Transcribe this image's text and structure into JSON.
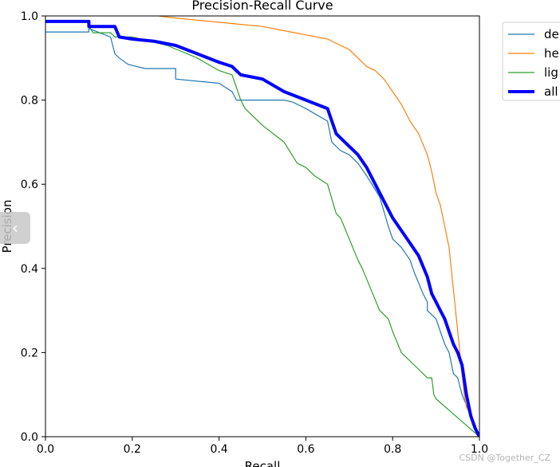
{
  "chart_data": {
    "type": "line",
    "title": "Precision-Recall Curve",
    "xlabel": "Recall",
    "ylabel": "Precision",
    "xlim": [
      0,
      1
    ],
    "ylim": [
      0,
      1
    ],
    "xticks": [
      "0.0",
      "0.2",
      "0.4",
      "0.6",
      "0.8",
      "1.0"
    ],
    "yticks": [
      "0.0",
      "0.2",
      "0.4",
      "0.6",
      "0.8",
      "1.0"
    ],
    "grid": false,
    "legend_position": "outside-top-right",
    "series": [
      {
        "name": "de",
        "color": "#1f77b4",
        "width": 1.2,
        "x": [
          0.0,
          0.1,
          0.1,
          0.15,
          0.16,
          0.17,
          0.19,
          0.21,
          0.23,
          0.3,
          0.3,
          0.4,
          0.43,
          0.44,
          0.46,
          0.5,
          0.55,
          0.57,
          0.6,
          0.65,
          0.66,
          0.68,
          0.7,
          0.72,
          0.74,
          0.77,
          0.79,
          0.8,
          0.82,
          0.84,
          0.85,
          0.87,
          0.88,
          0.88,
          0.9,
          0.91,
          0.92,
          0.93,
          0.94,
          0.95,
          0.96,
          1.0
        ],
        "y": [
          0.962,
          0.962,
          0.97,
          0.95,
          0.91,
          0.9,
          0.885,
          0.88,
          0.875,
          0.875,
          0.85,
          0.84,
          0.82,
          0.8,
          0.8,
          0.8,
          0.8,
          0.795,
          0.78,
          0.75,
          0.7,
          0.68,
          0.67,
          0.65,
          0.62,
          0.57,
          0.5,
          0.47,
          0.45,
          0.42,
          0.39,
          0.34,
          0.32,
          0.3,
          0.28,
          0.25,
          0.22,
          0.2,
          0.15,
          0.14,
          0.1,
          0.0
        ]
      },
      {
        "name": "he",
        "color": "#ff7f0e",
        "width": 1.2,
        "x": [
          0.26,
          0.3,
          0.35,
          0.4,
          0.45,
          0.5,
          0.55,
          0.6,
          0.65,
          0.68,
          0.7,
          0.72,
          0.74,
          0.76,
          0.78,
          0.8,
          0.82,
          0.84,
          0.86,
          0.88,
          0.89,
          0.9,
          0.91,
          0.92,
          0.93,
          0.935,
          0.94,
          0.945,
          0.95,
          0.955,
          0.96,
          0.965,
          0.97,
          0.98,
          0.99,
          1.0
        ],
        "y": [
          1.0,
          0.995,
          0.99,
          0.985,
          0.98,
          0.975,
          0.965,
          0.955,
          0.945,
          0.93,
          0.92,
          0.9,
          0.88,
          0.87,
          0.85,
          0.82,
          0.79,
          0.75,
          0.72,
          0.67,
          0.63,
          0.58,
          0.55,
          0.5,
          0.45,
          0.4,
          0.35,
          0.3,
          0.25,
          0.2,
          0.15,
          0.1,
          0.07,
          0.05,
          0.03,
          0.0
        ]
      },
      {
        "name": "lig",
        "color": "#2ca02c",
        "width": 1.2,
        "x": [
          0.1,
          0.11,
          0.15,
          0.16,
          0.2,
          0.28,
          0.35,
          0.4,
          0.43,
          0.44,
          0.45,
          0.46,
          0.5,
          0.55,
          0.58,
          0.6,
          0.62,
          0.65,
          0.67,
          0.68,
          0.7,
          0.72,
          0.73,
          0.75,
          0.77,
          0.79,
          0.8,
          0.82,
          0.84,
          0.86,
          0.88,
          0.89,
          0.895,
          0.9,
          1.0
        ],
        "y": [
          0.975,
          0.96,
          0.96,
          0.95,
          0.95,
          0.93,
          0.9,
          0.87,
          0.86,
          0.83,
          0.8,
          0.78,
          0.74,
          0.7,
          0.65,
          0.64,
          0.62,
          0.6,
          0.53,
          0.52,
          0.47,
          0.42,
          0.4,
          0.35,
          0.3,
          0.28,
          0.25,
          0.2,
          0.18,
          0.16,
          0.14,
          0.14,
          0.1,
          0.09,
          0.0
        ]
      },
      {
        "name": "all",
        "color": "#0000ff",
        "width": 4,
        "x": [
          0.0,
          0.1,
          0.1,
          0.16,
          0.17,
          0.2,
          0.25,
          0.3,
          0.35,
          0.4,
          0.43,
          0.45,
          0.5,
          0.55,
          0.6,
          0.65,
          0.66,
          0.67,
          0.69,
          0.72,
          0.74,
          0.76,
          0.78,
          0.8,
          0.82,
          0.84,
          0.86,
          0.88,
          0.89,
          0.9,
          0.91,
          0.92,
          0.93,
          0.94,
          0.95,
          0.96,
          0.97,
          0.98,
          0.99,
          1.0
        ],
        "y": [
          0.987,
          0.987,
          0.975,
          0.975,
          0.95,
          0.945,
          0.94,
          0.93,
          0.91,
          0.89,
          0.88,
          0.86,
          0.85,
          0.82,
          0.8,
          0.78,
          0.75,
          0.72,
          0.7,
          0.67,
          0.64,
          0.6,
          0.56,
          0.52,
          0.49,
          0.46,
          0.43,
          0.38,
          0.34,
          0.32,
          0.3,
          0.28,
          0.25,
          0.22,
          0.2,
          0.17,
          0.1,
          0.05,
          0.02,
          0.0
        ]
      }
    ]
  },
  "watermark": "CSDN @Together_CZ",
  "nav": {
    "prev_icon": "chevron-left-icon",
    "prev_glyph": "‹"
  }
}
